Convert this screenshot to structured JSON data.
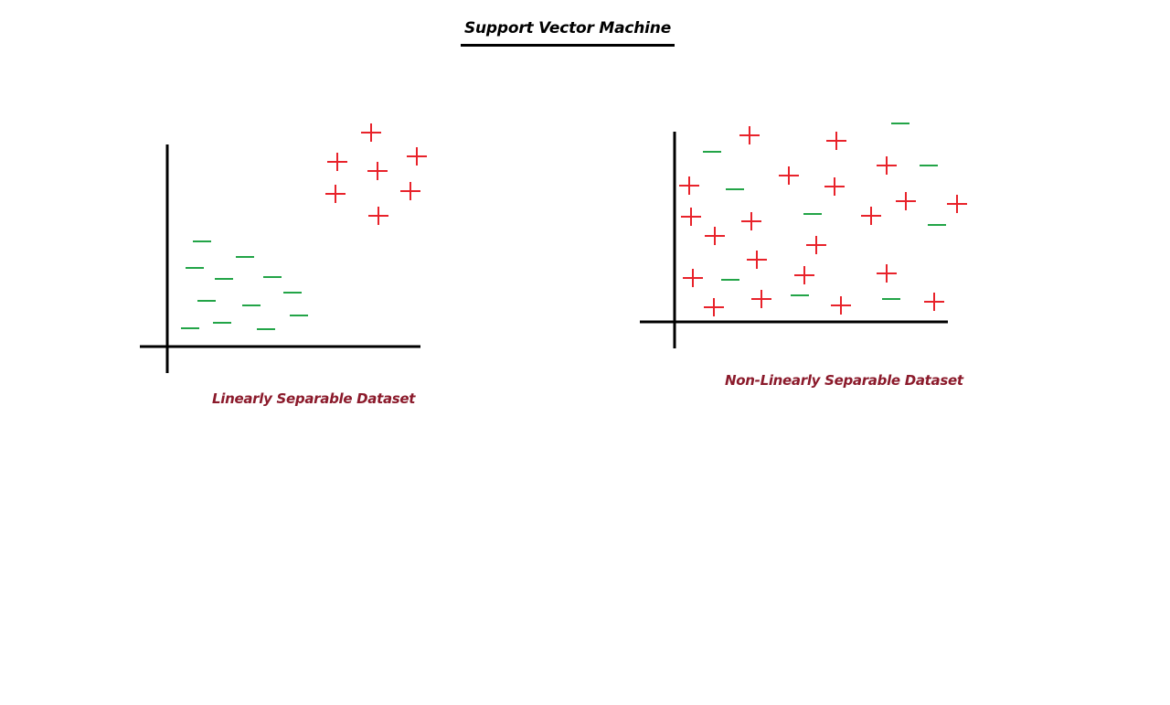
{
  "title": "Support Vector Machine",
  "colors": {
    "positive": "#e8222a",
    "negative": "#22a447",
    "axis": "#000000",
    "caption": "#8b1a2b"
  },
  "classes": {
    "positive_symbol": "+",
    "negative_symbol": "—"
  },
  "panels": [
    {
      "id": "linear",
      "caption": "Linearly Separable Dataset"
    },
    {
      "id": "nonlinear",
      "caption": "Non-Linearly Separable Dataset"
    }
  ]
}
